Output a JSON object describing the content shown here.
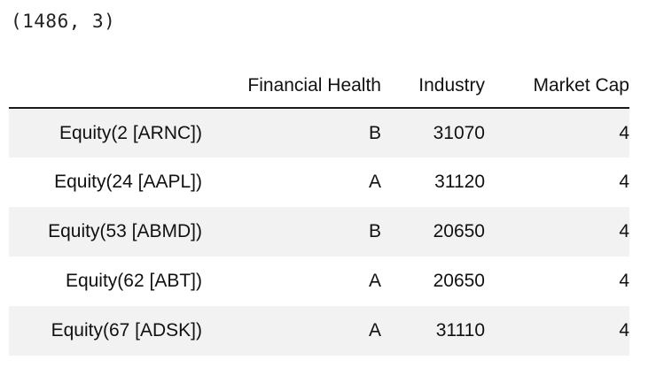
{
  "output": {
    "shape_text": "(1486, 3)"
  },
  "table": {
    "columns": [
      "Financial Health",
      "Industry",
      "Market Cap"
    ],
    "rows": [
      {
        "index": "Equity(2 [ARNC])",
        "financial_health": "B",
        "industry": "31070",
        "market_cap": "4"
      },
      {
        "index": "Equity(24 [AAPL])",
        "financial_health": "A",
        "industry": "31120",
        "market_cap": "4"
      },
      {
        "index": "Equity(53 [ABMD])",
        "financial_health": "B",
        "industry": "20650",
        "market_cap": "4"
      },
      {
        "index": "Equity(62 [ABT])",
        "financial_health": "A",
        "industry": "20650",
        "market_cap": "4"
      },
      {
        "index": "Equity(67 [ADSK])",
        "financial_health": "A",
        "industry": "31110",
        "market_cap": "4"
      }
    ]
  },
  "colors": {
    "stripe": "#f2f2f2",
    "header_rule": "#1a1a1a"
  }
}
